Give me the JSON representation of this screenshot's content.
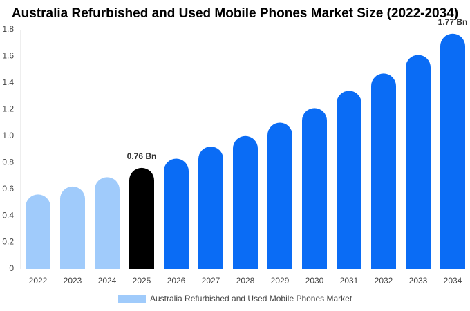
{
  "chart_data": {
    "type": "bar",
    "title": "Australia Refurbished and Used Mobile Phones Market Size (2022-2034)",
    "categories": [
      "2022",
      "2023",
      "2024",
      "2025",
      "2026",
      "2027",
      "2028",
      "2029",
      "2030",
      "2031",
      "2032",
      "2033",
      "2034"
    ],
    "series": [
      {
        "name": "Australia Refurbished and Used Mobile Phones Market",
        "color": "#a0cbfb",
        "values": [
          0.56,
          0.62,
          0.69,
          0.76,
          0.83,
          0.92,
          1.0,
          1.1,
          1.21,
          1.34,
          1.47,
          1.61,
          1.77
        ],
        "colors": [
          "#a0cbfb",
          "#a0cbfb",
          "#a0cbfb",
          "#000000",
          "#0a6cf5",
          "#0a6cf5",
          "#0a6cf5",
          "#0a6cf5",
          "#0a6cf5",
          "#0a6cf5",
          "#0a6cf5",
          "#0a6cf5",
          "#0a6cf5"
        ],
        "value_labels": [
          null,
          null,
          null,
          "0.76 Bn",
          null,
          null,
          null,
          null,
          null,
          null,
          null,
          null,
          "1.77 Bn"
        ]
      }
    ],
    "ylim": [
      0,
      1.8
    ],
    "yticks": [
      0,
      0.2,
      0.4,
      0.6,
      0.8,
      {
        "value": 1,
        "label": "1.0"
      },
      1.2,
      1.4,
      1.6,
      1.8
    ],
    "grid": false,
    "legend": "bottom"
  }
}
